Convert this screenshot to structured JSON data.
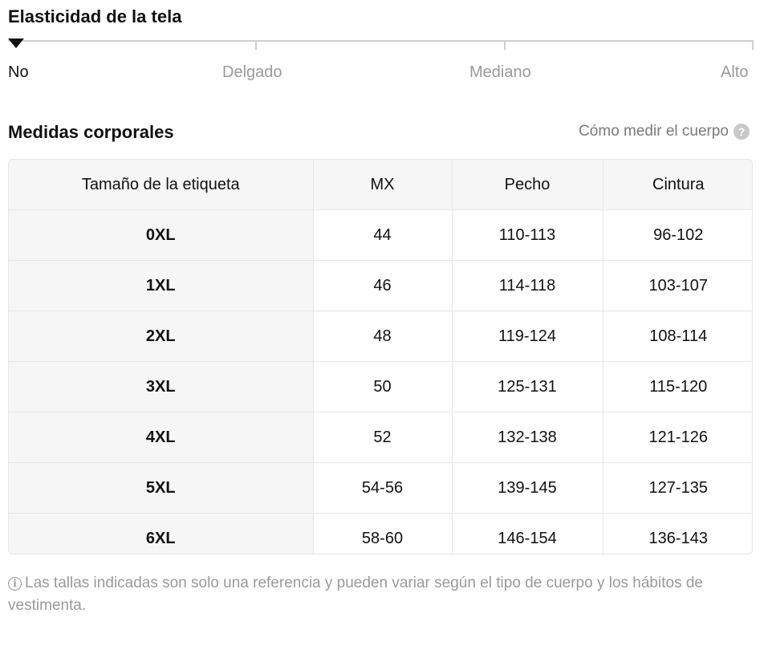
{
  "stretch": {
    "title": "Elasticidad de la tela",
    "levels": [
      "No",
      "Delgado",
      "Mediano",
      "Alto"
    ],
    "selected": "No",
    "marker_icon": "triangle-down-icon"
  },
  "measurements": {
    "title": "Medidas corporales",
    "how_to_link": "Cómo medir el cuerpo",
    "help_icon": "?",
    "columns": [
      "Tamaño de la etiqueta",
      "MX",
      "Pecho",
      "Cintura"
    ],
    "rows": [
      [
        "0XL",
        "44",
        "110-113",
        "96-102"
      ],
      [
        "1XL",
        "46",
        "114-118",
        "103-107"
      ],
      [
        "2XL",
        "48",
        "119-124",
        "108-114"
      ],
      [
        "3XL",
        "50",
        "125-131",
        "115-120"
      ],
      [
        "4XL",
        "52",
        "132-138",
        "121-126"
      ],
      [
        "5XL",
        "54-56",
        "139-145",
        "127-135"
      ],
      [
        "6XL",
        "58-60",
        "146-154",
        "136-143"
      ]
    ]
  },
  "note": {
    "icon": "i",
    "text": "Las tallas indicadas son solo una referencia y pueden variar según el tipo de cuerpo y los hábitos de vestimenta."
  }
}
